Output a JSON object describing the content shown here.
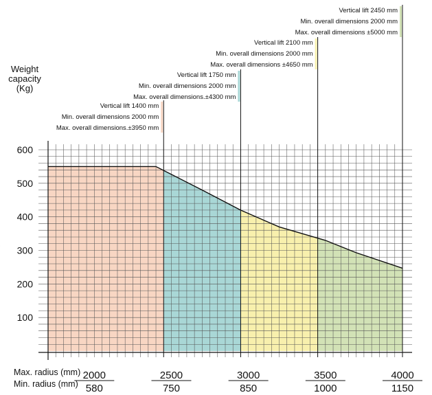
{
  "chart_data": {
    "type": "area",
    "title": "",
    "ylabel_lines": [
      "Weight",
      "capacity",
      "(Kg)"
    ],
    "yticks": [
      "100",
      "200",
      "300",
      "400",
      "500",
      "600"
    ],
    "ylim": [
      0,
      600
    ],
    "xlim": [
      1700,
      4000
    ],
    "row_labels": {
      "max_radius": "Max. radius (mm)",
      "min_radius": "Min. radius (mm)"
    },
    "radius_pairs": [
      {
        "max": "2000",
        "min": "580",
        "x": 2000
      },
      {
        "max": "2500",
        "min": "750",
        "x": 2500
      },
      {
        "max": "3000",
        "min": "850",
        "x": 3000
      },
      {
        "max": "3500",
        "min": "1000",
        "x": 3500
      },
      {
        "max": "4000",
        "min": "1150",
        "x": 4000
      }
    ],
    "capacity_curve": {
      "x": [
        1700,
        2400,
        2700,
        2950,
        3200,
        3500,
        3700,
        4000
      ],
      "y": [
        550,
        550,
        480,
        420,
        370,
        330,
        293,
        247
      ]
    },
    "bands": [
      {
        "from": 1700,
        "to": 2450,
        "color": "#f8d6c3",
        "lines": [
          "Vertical lift 1400 mm",
          "Min. overall dimensions 2000 mm",
          "Max. overall dimensions.±3950 mm"
        ]
      },
      {
        "from": 2450,
        "to": 2950,
        "color": "#a9d7d6",
        "lines": [
          "Vertical lift 1750 mm",
          "Min. overall dimensions 2000 mm",
          "Max. overall dimensions.±4300 mm"
        ]
      },
      {
        "from": 2950,
        "to": 3450,
        "color": "#f8f0ad",
        "lines": [
          "Vertical lift 2100 mm",
          "Min. overall dimensions 2000 mm",
          "Max. overall dimensions ±4650 mm"
        ]
      },
      {
        "from": 3450,
        "to": 4000,
        "color": "#d2e2b6",
        "lines": [
          "Vertical lift 2450 mm",
          "Min. overall dimensions 2000 mm",
          "Max. overall dimensions ±5000 mm"
        ]
      }
    ],
    "stray_mark": "°"
  }
}
